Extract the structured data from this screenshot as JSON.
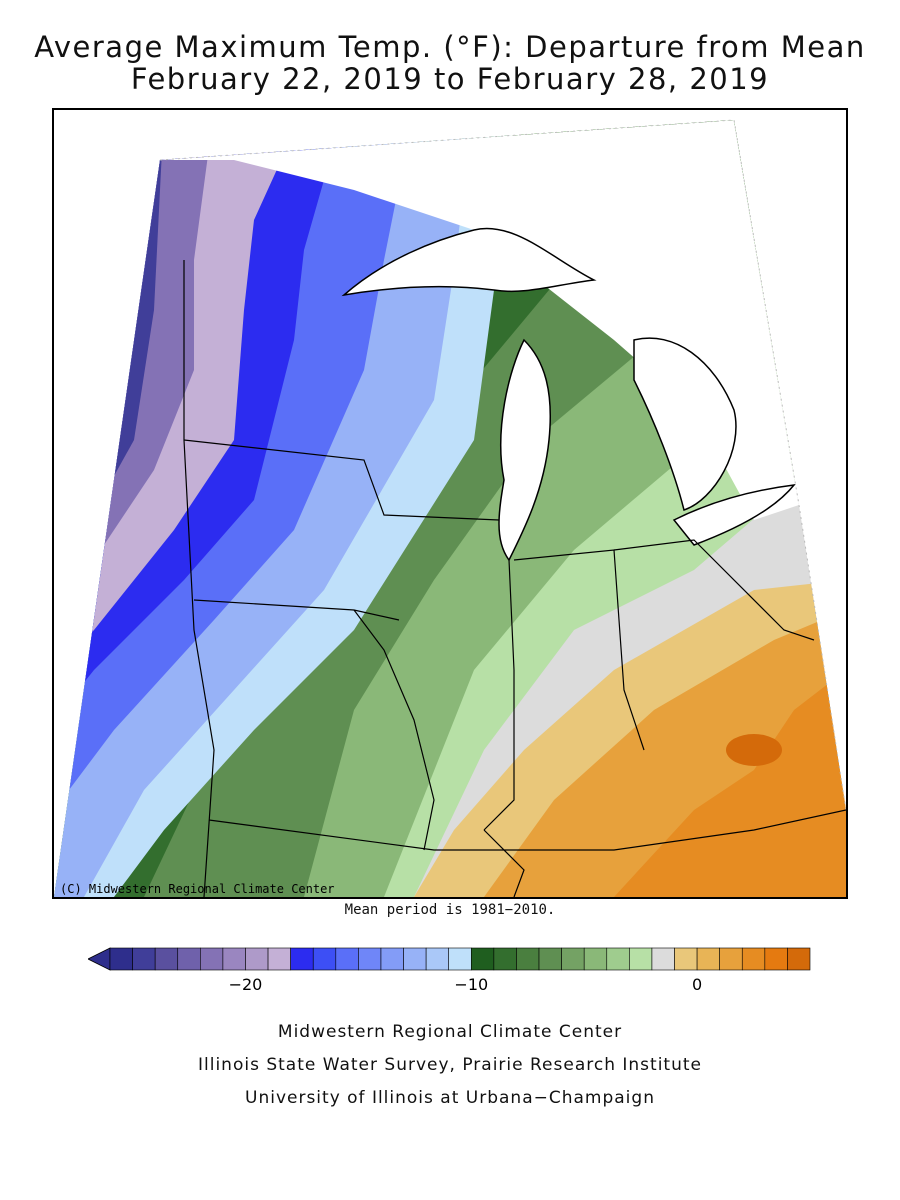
{
  "title": {
    "line1": "Average Maximum Temp. (°F): Departure from Mean",
    "line2": "February 22, 2019 to February 28, 2019"
  },
  "map": {
    "copyright": "(C) Midwestern Regional Climate Center",
    "mean_note": "Mean period is 1981−2010."
  },
  "legend": {
    "colors": [
      "#2e2e8c",
      "#403e99",
      "#5a509f",
      "#6f61ab",
      "#8472b5",
      "#9a86c0",
      "#ae9ac9",
      "#c4b0d6",
      "#2c2cf0",
      "#3d4ff5",
      "#5a6ff8",
      "#6f86f8",
      "#839cf7",
      "#97b2f7",
      "#aac8f8",
      "#bfe0fa",
      "#1f5e1f",
      "#336e2e",
      "#4a7f3f",
      "#5f8f52",
      "#74a264",
      "#8ab878",
      "#9fcc8e",
      "#b7e0a6",
      "#dcdcdc",
      "#e9c77a",
      "#e8b456",
      "#e7a13c",
      "#e68c22",
      "#e57a10",
      "#d46a0a"
    ],
    "tick_labels": [
      {
        "text": "−20",
        "value": -20
      },
      {
        "text": "−10",
        "value": -10
      },
      {
        "text": "0",
        "value": 0
      }
    ],
    "min": -26,
    "max": 5
  },
  "credits": {
    "line1": "Midwestern Regional Climate Center",
    "line2": "Illinois State Water Survey, Prairie Research Institute",
    "line3": "University of Illinois at Urbana−Champaign"
  }
}
